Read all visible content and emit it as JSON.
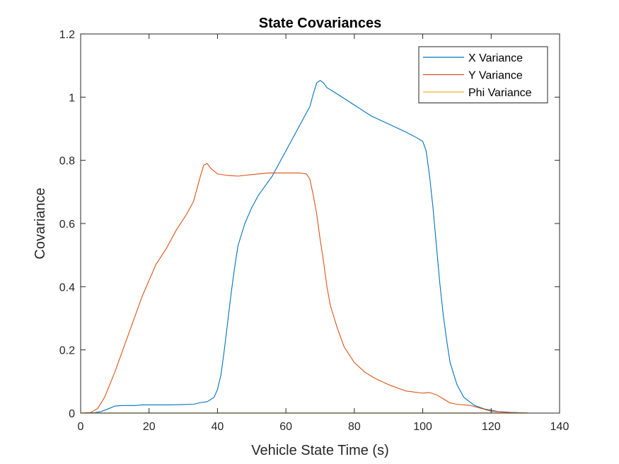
{
  "chart_data": {
    "type": "line",
    "title": "State Covariances",
    "xlabel": "Vehicle State Time (s)",
    "ylabel": "Covariance",
    "xlim": [
      0,
      140
    ],
    "ylim": [
      0,
      1.2
    ],
    "xticks": [
      0,
      20,
      40,
      60,
      80,
      100,
      120,
      140
    ],
    "yticks": [
      0,
      0.2,
      0.4,
      0.6,
      0.8,
      1,
      1.2
    ],
    "xtick_labels": [
      "0",
      "20",
      "40",
      "60",
      "80",
      "100",
      "120",
      "140"
    ],
    "ytick_labels": [
      "0",
      "0.2",
      "0.4",
      "0.6",
      "0.8",
      "1",
      "1.2"
    ],
    "grid": false,
    "legend_position": "top-right",
    "series": [
      {
        "name": "X Variance",
        "color": "#0072BD",
        "points": [
          [
            0,
            0
          ],
          [
            4,
            0.001
          ],
          [
            6,
            0.005
          ],
          [
            8,
            0.013
          ],
          [
            10,
            0.022
          ],
          [
            12,
            0.024
          ],
          [
            16,
            0.024
          ],
          [
            18,
            0.026
          ],
          [
            22,
            0.026
          ],
          [
            26,
            0.026
          ],
          [
            30,
            0.027
          ],
          [
            33,
            0.028
          ],
          [
            35,
            0.033
          ],
          [
            37,
            0.036
          ],
          [
            39,
            0.05
          ],
          [
            40,
            0.075
          ],
          [
            41,
            0.12
          ],
          [
            42,
            0.2
          ],
          [
            43,
            0.29
          ],
          [
            44,
            0.38
          ],
          [
            45,
            0.46
          ],
          [
            46,
            0.53
          ],
          [
            48,
            0.6
          ],
          [
            50,
            0.65
          ],
          [
            52,
            0.69
          ],
          [
            54,
            0.72
          ],
          [
            56,
            0.75
          ],
          [
            58,
            0.79
          ],
          [
            60,
            0.83
          ],
          [
            62,
            0.87
          ],
          [
            64,
            0.91
          ],
          [
            66,
            0.95
          ],
          [
            67,
            0.97
          ],
          [
            68,
            1.01
          ],
          [
            69,
            1.045
          ],
          [
            70,
            1.053
          ],
          [
            71,
            1.045
          ],
          [
            72,
            1.03
          ],
          [
            75,
            1.01
          ],
          [
            80,
            0.975
          ],
          [
            85,
            0.94
          ],
          [
            90,
            0.915
          ],
          [
            95,
            0.89
          ],
          [
            98,
            0.873
          ],
          [
            100,
            0.86
          ],
          [
            101,
            0.83
          ],
          [
            102,
            0.75
          ],
          [
            103,
            0.65
          ],
          [
            104,
            0.53
          ],
          [
            105,
            0.41
          ],
          [
            106,
            0.31
          ],
          [
            107,
            0.23
          ],
          [
            108,
            0.16
          ],
          [
            110,
            0.09
          ],
          [
            112,
            0.05
          ],
          [
            115,
            0.025
          ],
          [
            118,
            0.013
          ],
          [
            122,
            0.005
          ],
          [
            126,
            0.002
          ],
          [
            131,
            0.0
          ]
        ]
      },
      {
        "name": "Y Variance",
        "color": "#D95319",
        "points": [
          [
            0,
            0
          ],
          [
            3,
            0.002
          ],
          [
            5,
            0.015
          ],
          [
            7,
            0.05
          ],
          [
            10,
            0.13
          ],
          [
            12,
            0.19
          ],
          [
            15,
            0.28
          ],
          [
            18,
            0.37
          ],
          [
            20,
            0.42
          ],
          [
            22,
            0.47
          ],
          [
            25,
            0.52
          ],
          [
            28,
            0.58
          ],
          [
            31,
            0.63
          ],
          [
            33,
            0.67
          ],
          [
            35,
            0.75
          ],
          [
            36,
            0.785
          ],
          [
            37,
            0.79
          ],
          [
            38,
            0.775
          ],
          [
            40,
            0.757
          ],
          [
            43,
            0.752
          ],
          [
            46,
            0.75
          ],
          [
            50,
            0.755
          ],
          [
            55,
            0.76
          ],
          [
            60,
            0.76
          ],
          [
            64,
            0.76
          ],
          [
            66,
            0.757
          ],
          [
            67,
            0.74
          ],
          [
            68,
            0.69
          ],
          [
            69,
            0.63
          ],
          [
            70,
            0.55
          ],
          [
            71,
            0.48
          ],
          [
            72,
            0.4
          ],
          [
            73,
            0.34
          ],
          [
            75,
            0.27
          ],
          [
            77,
            0.21
          ],
          [
            80,
            0.16
          ],
          [
            83,
            0.13
          ],
          [
            86,
            0.11
          ],
          [
            90,
            0.09
          ],
          [
            95,
            0.07
          ],
          [
            100,
            0.063
          ],
          [
            102,
            0.065
          ],
          [
            104,
            0.058
          ],
          [
            106,
            0.045
          ],
          [
            108,
            0.032
          ],
          [
            110,
            0.028
          ],
          [
            114,
            0.024
          ],
          [
            117,
            0.015
          ],
          [
            120,
            0.006
          ],
          [
            125,
            0.002
          ],
          [
            131,
            0.0
          ]
        ]
      },
      {
        "name": "Phi Variance",
        "color": "#EDB120",
        "points": [
          [
            0,
            0.0005
          ],
          [
            131,
            0.0005
          ]
        ]
      }
    ]
  }
}
